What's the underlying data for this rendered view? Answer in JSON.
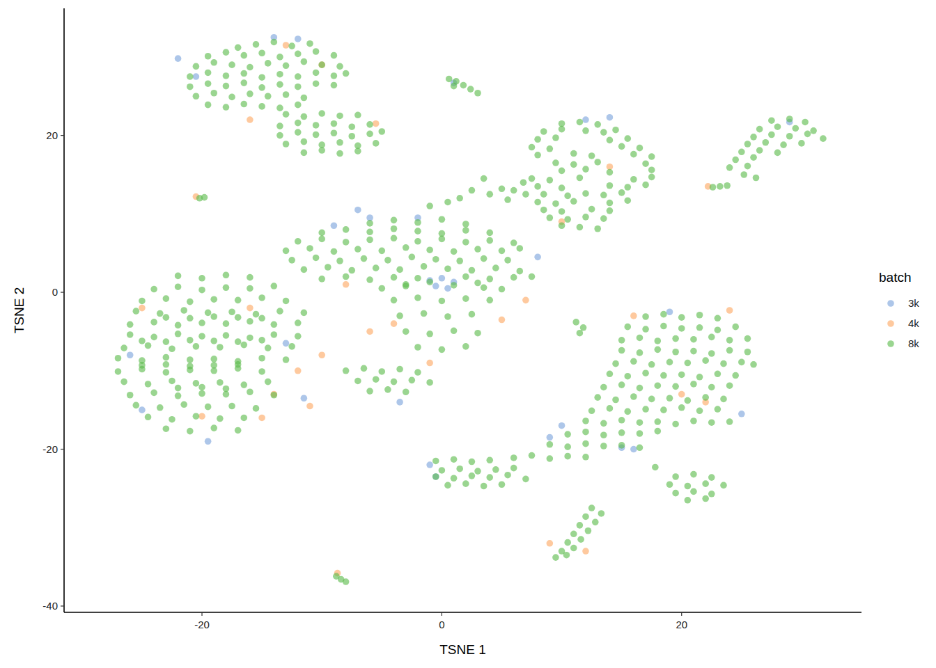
{
  "chart_data": {
    "type": "scatter",
    "x_label": "TSNE 1",
    "y_label": "TSNE 2",
    "legend_title": "batch",
    "xlim": [
      -31.5,
      35
    ],
    "ylim": [
      -40.8,
      36.2
    ],
    "xticks": [
      -20,
      0,
      20
    ],
    "yticks": [
      -40,
      -20,
      0,
      20
    ],
    "grid": false,
    "legend": "right",
    "marker": "circle",
    "series": [
      {
        "name": "3k",
        "color": "#7aa3dc",
        "x": [
          -14,
          -12,
          -20.5,
          -22,
          -1,
          0,
          1,
          -0.5,
          0.5,
          -25,
          -19.5,
          -11.5,
          -26,
          -6,
          -9,
          10,
          9,
          16,
          15,
          -1,
          -0.5,
          12,
          14,
          29,
          1,
          8,
          19,
          25,
          -13,
          -3.5,
          -7,
          -2
        ],
        "values": [
          32.5,
          32.3,
          27.5,
          29.8,
          1.5,
          1.8,
          1.3,
          0.8,
          0.5,
          -15,
          -19,
          -13.5,
          -8,
          9.5,
          8.5,
          -17,
          -18.5,
          -20,
          -19.8,
          -22,
          -23.5,
          22,
          22.3,
          21.7,
          26.7,
          4.5,
          -2.5,
          -15.5,
          -6.5,
          -14,
          10.5,
          9.5
        ]
      },
      {
        "name": "4k",
        "color": "#fda863",
        "x": [
          -13,
          -10,
          -5.5,
          -15,
          -11,
          -14,
          -12,
          -20,
          -16,
          -25,
          -8,
          -4,
          5,
          10,
          14,
          24,
          22,
          16,
          -6,
          12,
          9,
          -8.7,
          -20.5,
          -1,
          20,
          22.2,
          7,
          -16,
          -10
        ],
        "values": [
          31.5,
          29,
          21.5,
          -16,
          -14.5,
          -13,
          -10,
          -15.8,
          -2,
          -2,
          1,
          -4,
          -3.5,
          9,
          16,
          -2.3,
          -14,
          -3,
          -5,
          -33,
          -32,
          -35.8,
          12.2,
          -9,
          -13,
          13.5,
          -1,
          22,
          -8
        ]
      },
      {
        "name": "8k",
        "color": "#5cbb4c",
        "x": [
          -17,
          -15.5,
          -14,
          -12.5,
          -11,
          -19.5,
          -18,
          -16.5,
          -15,
          -13.5,
          -12,
          -10.5,
          -9,
          -20.5,
          -19,
          -17.5,
          -16,
          -14.5,
          -13,
          -11.5,
          -10,
          -8.5,
          -21,
          -19.5,
          -18,
          -16.5,
          -15,
          -13.5,
          -12,
          -10.5,
          -9,
          -8,
          -21,
          -19.5,
          -18,
          -16.5,
          -15,
          -13.5,
          -12,
          -10.5,
          -9,
          -20.5,
          -19,
          -17.5,
          -16,
          -14.5,
          -13,
          -11.5,
          -19.5,
          -18,
          -16.5,
          -15,
          -13.5,
          -12,
          -13,
          -11.5,
          -10,
          -8.5,
          -7,
          -13.5,
          -12,
          -10.5,
          -9,
          -7.5,
          -6,
          -13.5,
          -12,
          -10.5,
          -9,
          -7.5,
          -6,
          -5,
          -13,
          -11.5,
          -10,
          -8.5,
          -7,
          -5.5,
          -11.5,
          -10,
          -8.5,
          -7,
          0.6,
          1.2,
          1.8,
          2.4,
          3.0,
          1.0,
          27.5,
          29,
          30.3,
          26.5,
          28,
          29.5,
          31,
          26,
          27.5,
          29,
          30.5,
          31.8,
          25.5,
          27,
          28.5,
          30,
          25,
          26.5,
          28,
          24.5,
          26,
          24,
          25.5,
          25.2,
          26.2,
          22.6,
          23.2,
          23.8,
          10,
          11.5,
          13,
          8.5,
          10,
          12,
          13.5,
          14.5,
          8,
          9.5,
          14,
          15.5,
          7.5,
          9,
          15,
          16.5,
          8,
          11,
          12.5,
          16,
          17.5,
          9.5,
          11,
          13,
          17,
          10,
          12,
          14,
          17.5,
          7.5,
          9,
          11.5,
          16,
          17.5,
          8,
          10,
          14,
          15.5,
          17,
          8.5,
          10.5,
          12,
          13.5,
          15,
          8,
          9.5,
          11,
          14,
          15.5,
          8.5,
          10,
          12.5,
          14,
          9,
          10.5,
          12,
          13.5,
          10,
          11.5,
          13,
          1.5,
          2.5,
          3.5,
          4,
          5,
          5.5,
          6,
          6.8,
          7,
          0.5,
          -1,
          -6,
          -4,
          -2,
          0,
          2,
          -10,
          -8,
          -6,
          -4,
          -2,
          0,
          2,
          4,
          -12,
          -10,
          -8,
          -6,
          -4,
          -2,
          0,
          2,
          4,
          6,
          -13,
          -11,
          -9,
          -7,
          -5,
          -3,
          -1,
          1,
          3,
          5,
          6.5,
          -12.5,
          -10.5,
          -8.5,
          -6.5,
          -4.5,
          -2.5,
          -0.5,
          1.5,
          3.5,
          5.5,
          -11.5,
          -9.5,
          -7.5,
          -5.5,
          -3.5,
          -1.5,
          0.5,
          2.5,
          4.5,
          6.5,
          -10,
          -8,
          -6,
          -4,
          -2,
          2,
          4,
          6,
          -5,
          -3,
          3.5,
          5,
          7.5,
          -22,
          -20,
          -18,
          -16,
          -24,
          -22,
          -20,
          -18,
          -16,
          -14,
          -25,
          -23,
          -21,
          -19,
          -17,
          -15,
          -13,
          -25.5,
          -23.5,
          -21.5,
          -19.5,
          -17.5,
          -15.5,
          -13.5,
          -11.5,
          -26,
          -24,
          -22,
          -20,
          -18,
          -16,
          -14,
          -12,
          -26,
          -24,
          -22,
          -20,
          -18,
          -16,
          -14,
          -12,
          -26.5,
          -24.5,
          -22.5,
          -20.5,
          -18.5,
          -16.5,
          -14.5,
          -12.5,
          -27,
          -25,
          -23,
          -21,
          -19,
          -17,
          -15,
          -13,
          -27,
          -25,
          -23,
          -21,
          -19,
          -17,
          -15,
          -26.5,
          -24.5,
          -22.5,
          -20.5,
          -18.5,
          -16.5,
          -14.5,
          -26,
          -24,
          -22,
          -20,
          -18,
          -16,
          -14,
          -25.5,
          -23.5,
          -21.5,
          -19.5,
          -17.5,
          -15.5,
          -24.5,
          -22.5,
          -20.5,
          -18.5,
          -16.5,
          -23,
          -21,
          -19,
          -17,
          -23,
          -21,
          -19,
          -17,
          -15,
          -25,
          -23,
          -21,
          -19,
          -17,
          -15,
          -25,
          -23,
          -21,
          -19,
          -17,
          -22,
          -20,
          -18,
          -3,
          -1,
          1,
          3,
          -4,
          -2,
          0,
          2,
          4,
          -3.5,
          -1.5,
          0.5,
          2.5,
          -3,
          -1,
          1,
          3,
          -2,
          0,
          2,
          -8,
          -6.5,
          -5,
          -3.5,
          -2,
          -7,
          -5.5,
          -4,
          -2.5,
          -1,
          -6,
          -4.5,
          -3,
          17,
          18.5,
          20,
          21.5,
          23,
          15.5,
          17,
          18.5,
          20,
          21.5,
          23,
          24.5,
          15,
          16.5,
          18,
          19.5,
          21,
          22.5,
          24,
          25.5,
          15,
          16.5,
          18,
          19.5,
          21,
          22.5,
          24,
          25.5,
          14.5,
          16,
          17.5,
          19,
          20.5,
          22,
          23.5,
          25,
          26,
          14,
          15.5,
          17,
          18.5,
          20,
          21.5,
          23,
          24.5,
          13.5,
          15,
          16.5,
          18,
          19.5,
          21,
          22.5,
          24,
          13,
          14.5,
          16,
          17.5,
          19,
          20.5,
          22,
          23.5,
          12.5,
          14,
          15.5,
          17,
          18.5,
          20,
          21.5,
          23,
          12,
          13.5,
          15,
          16.5,
          18,
          19.5,
          21,
          22.5,
          24,
          10.5,
          12,
          13.5,
          15,
          16.5,
          18,
          9,
          10.5,
          12,
          13.5,
          15,
          16.5,
          6,
          7.5,
          9,
          10.5,
          12,
          -0.5,
          1,
          2.5,
          4,
          0,
          1.5,
          3,
          4.5,
          6,
          -0.5,
          1,
          2.5,
          4,
          5.5,
          7,
          0.5,
          2,
          3.5,
          5,
          19.5,
          21,
          22.5,
          19,
          20.5,
          22,
          23.5,
          19.5,
          21,
          22.5,
          20.5,
          22,
          17.8,
          12.5,
          12,
          11.5,
          11,
          10.5,
          10,
          9.5,
          13.3,
          12.8,
          12.2,
          11.6,
          11,
          10.4,
          -8.8,
          -8.4,
          -8.0,
          -20.2,
          -19.8,
          11.2,
          11.8,
          11.5
        ],
        "values": [
          31.2,
          31.6,
          31.9,
          31.4,
          31.7,
          30.1,
          30.6,
          30.2,
          30.5,
          30.0,
          30.4,
          30.7,
          30.2,
          28.8,
          29.3,
          29.0,
          28.7,
          29.2,
          28.9,
          29.4,
          29.0,
          28.8,
          27.5,
          28.0,
          27.6,
          27.9,
          27.4,
          27.8,
          27.5,
          28.0,
          27.6,
          27.9,
          26.2,
          26.6,
          26.3,
          26.7,
          26.1,
          26.5,
          26.2,
          26.6,
          26.4,
          25.0,
          25.4,
          24.9,
          25.3,
          25.0,
          25.2,
          24.8,
          23.9,
          23.6,
          24.0,
          23.7,
          23.5,
          23.9,
          22.7,
          22.4,
          22.8,
          22.5,
          22.6,
          21.2,
          21.6,
          21.3,
          21.5,
          21.1,
          21.4,
          20.0,
          20.4,
          20.1,
          20.3,
          19.9,
          20.2,
          20.5,
          18.9,
          19.2,
          18.8,
          19.1,
          18.7,
          19.0,
          17.8,
          18.1,
          17.7,
          18.0,
          27.2,
          26.9,
          26.4,
          25.9,
          25.4,
          26.3,
          21.9,
          22.1,
          21.7,
          20.8,
          21.1,
          20.9,
          20.6,
          19.8,
          20.1,
          19.9,
          20.2,
          19.6,
          18.9,
          19.1,
          18.8,
          19.0,
          17.9,
          18.1,
          17.8,
          16.9,
          17.2,
          15.9,
          16.1,
          15.0,
          14.6,
          13.4,
          13.5,
          13.6,
          21.5,
          21.7,
          21.4,
          20.5,
          20.8,
          20.6,
          20.4,
          20.7,
          19.5,
          19.7,
          19.4,
          19.6,
          18.5,
          18.3,
          18.6,
          18.4,
          17.5,
          17.7,
          17.4,
          17.6,
          17.3,
          16.5,
          16.3,
          16.6,
          16.4,
          15.5,
          15.7,
          15.3,
          15.6,
          14.5,
          14.3,
          14.6,
          14.4,
          14.7,
          13.5,
          13.3,
          13.6,
          13.4,
          13.7,
          12.5,
          12.3,
          12.6,
          12.4,
          12.7,
          11.5,
          11.3,
          11.6,
          11.4,
          11.7,
          10.5,
          10.3,
          10.6,
          10.4,
          9.5,
          9.3,
          9.6,
          9.4,
          8.5,
          8.3,
          8.1,
          12,
          13,
          14.5,
          12.5,
          13.2,
          11.8,
          13,
          14,
          12.5,
          11.5,
          11,
          8.8,
          9.2,
          8.9,
          9.3,
          8.7,
          7.6,
          8.0,
          7.7,
          8.1,
          7.8,
          7.5,
          7.9,
          7.6,
          6.5,
          6.8,
          6.4,
          6.7,
          6.9,
          6.5,
          6.8,
          6.4,
          6.6,
          6.3,
          5.3,
          5.6,
          5.2,
          5.5,
          5.3,
          5.7,
          5.4,
          5.2,
          5.5,
          5.3,
          5.6,
          4.1,
          4.4,
          4.0,
          4.3,
          4.1,
          4.5,
          4.2,
          4.0,
          4.3,
          4.1,
          2.9,
          3.2,
          2.8,
          3.1,
          2.9,
          3.3,
          3.0,
          2.8,
          3.1,
          2.7,
          1.7,
          2.0,
          1.6,
          1.9,
          1.8,
          2.0,
          1.7,
          1.9,
          0.5,
          0.8,
          0.6,
          0.4,
          2.0,
          2.1,
          1.8,
          2.2,
          1.9,
          0.4,
          0.7,
          0.3,
          0.6,
          0.5,
          0.8,
          -1.1,
          -0.8,
          -1.2,
          -0.9,
          -1.0,
          -0.7,
          -1.1,
          -2.4,
          -2.7,
          -2.3,
          -2.6,
          -2.5,
          -2.8,
          -2.4,
          -2.6,
          -4.1,
          -3.8,
          -4.2,
          -3.9,
          -4.0,
          -3.7,
          -4.1,
          -3.9,
          -5.4,
          -5.7,
          -5.3,
          -5.6,
          -5.5,
          -5.8,
          -5.4,
          -5.6,
          -7.1,
          -6.8,
          -7.2,
          -6.9,
          -7.0,
          -6.7,
          -7.1,
          -6.9,
          -8.4,
          -8.7,
          -8.3,
          -8.6,
          -8.5,
          -8.8,
          -8.4,
          -8.6,
          -10.1,
          -9.8,
          -10.2,
          -9.9,
          -10.0,
          -9.7,
          -10.1,
          -11.4,
          -11.7,
          -11.3,
          -11.6,
          -11.5,
          -11.8,
          -11.4,
          -13.1,
          -12.8,
          -13.2,
          -12.9,
          -13.0,
          -12.7,
          -13.1,
          -14.4,
          -14.7,
          -14.3,
          -14.6,
          -14.5,
          -14.8,
          -15.9,
          -16.2,
          -15.8,
          -16.1,
          -16.0,
          -17.4,
          -17.7,
          -17.3,
          -17.6,
          -3.2,
          -3.3,
          -3.1,
          -3.2,
          -3.3,
          -6.2,
          -6.3,
          -6.1,
          -6.2,
          -6.3,
          -6.1,
          -9.3,
          -9.2,
          -9.4,
          -9.3,
          -9.2,
          -12.2,
          -12.1,
          -12.3,
          1.0,
          1.3,
          0.9,
          1.2,
          -1.0,
          -0.7,
          -1.1,
          -0.8,
          -1.0,
          -3.0,
          -2.7,
          -3.1,
          -2.8,
          -5.0,
          -5.3,
          -4.9,
          -5.2,
          -7.0,
          -7.3,
          -6.9,
          -10,
          -9.7,
          -10.1,
          -9.8,
          -10.2,
          -11.3,
          -11.1,
          -11.4,
          -11.2,
          -11.5,
          -12.6,
          -12.4,
          -12.7,
          -3.1,
          -2.8,
          -3.2,
          -2.9,
          -3.3,
          -4.4,
          -4.7,
          -4.3,
          -4.6,
          -4.5,
          -4.8,
          -4.4,
          -6.1,
          -5.8,
          -6.2,
          -5.9,
          -6.0,
          -5.7,
          -6.1,
          -5.9,
          -7.4,
          -7.7,
          -7.3,
          -7.6,
          -7.5,
          -7.8,
          -7.4,
          -7.6,
          -9.1,
          -8.8,
          -9.2,
          -8.9,
          -9.0,
          -8.7,
          -9.1,
          -8.9,
          -9.2,
          -10.4,
          -10.7,
          -10.3,
          -10.6,
          -10.5,
          -10.8,
          -10.4,
          -10.6,
          -12.1,
          -11.8,
          -12.2,
          -11.9,
          -12.0,
          -11.7,
          -12.1,
          -11.9,
          -13.4,
          -13.7,
          -13.3,
          -13.6,
          -13.5,
          -13.8,
          -13.4,
          -13.6,
          -15.1,
          -14.8,
          -15.2,
          -14.9,
          -15.0,
          -14.7,
          -15.1,
          -14.9,
          -16.4,
          -16.7,
          -16.3,
          -16.6,
          -16.5,
          -16.8,
          -16.4,
          -16.6,
          -16.5,
          -18.1,
          -17.8,
          -18.2,
          -17.9,
          -18.0,
          -17.7,
          -19.4,
          -19.7,
          -19.3,
          -19.6,
          -19.5,
          -19.8,
          -21.1,
          -20.8,
          -21.2,
          -20.9,
          -21.0,
          -21.5,
          -21.3,
          -21.6,
          -21.4,
          -22.7,
          -22.5,
          -22.8,
          -22.6,
          -22.4,
          -23.5,
          -23.7,
          -23.4,
          -23.6,
          -23.3,
          -23.8,
          -24.6,
          -24.4,
          -24.7,
          -24.5,
          -23.5,
          -23.2,
          -23.6,
          -24.5,
          -24.7,
          -24.4,
          -24.6,
          -25.6,
          -25.4,
          -25.7,
          -26.5,
          -26.3,
          -22.3,
          -27.5,
          -28.6,
          -29.7,
          -30.8,
          -31.9,
          -33,
          -33.8,
          -28.2,
          -29.3,
          -30.4,
          -31.5,
          -32.6,
          -33.5,
          -36.2,
          -36.6,
          -36.9,
          12,
          12.1,
          -3.8,
          -4.5,
          -5.2
        ]
      }
    ]
  }
}
